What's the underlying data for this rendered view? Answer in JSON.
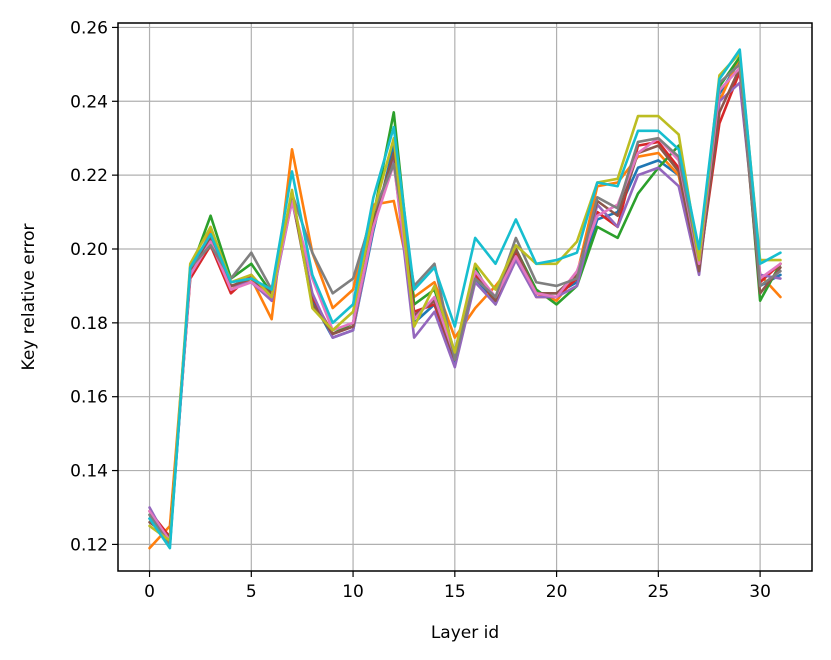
{
  "chart_data": {
    "type": "line",
    "xlabel": "Layer id",
    "ylabel": "Key relative error",
    "xlim": [
      -1.55,
      32.55
    ],
    "ylim": [
      0.1128,
      0.2612
    ],
    "xticks": [
      0,
      5,
      10,
      15,
      20,
      25,
      30
    ],
    "yticks": [
      0.12,
      0.14,
      0.16,
      0.18,
      0.2,
      0.22,
      0.24,
      0.26
    ],
    "xtick_labels": [
      "0",
      "5",
      "10",
      "15",
      "20",
      "25",
      "30"
    ],
    "ytick_labels": [
      "0.12",
      "0.14",
      "0.16",
      "0.18",
      "0.20",
      "0.22",
      "0.24",
      "0.26"
    ],
    "grid": true,
    "legend": "none",
    "x": [
      0,
      1,
      2,
      3,
      4,
      5,
      6,
      7,
      8,
      9,
      10,
      11,
      12,
      13,
      14,
      15,
      16,
      17,
      18,
      19,
      20,
      21,
      22,
      23,
      24,
      25,
      26,
      27,
      28,
      29,
      30,
      31
    ],
    "series": [
      {
        "color": "#1f77b4",
        "values": [
          0.127,
          0.121,
          0.193,
          0.203,
          0.19,
          0.191,
          0.188,
          0.215,
          0.186,
          0.176,
          0.178,
          0.205,
          0.228,
          0.18,
          0.185,
          0.169,
          0.192,
          0.186,
          0.198,
          0.188,
          0.188,
          0.191,
          0.208,
          0.21,
          0.222,
          0.224,
          0.22,
          0.194,
          0.242,
          0.251,
          0.19,
          0.193
        ]
      },
      {
        "color": "#ff7f0e",
        "values": [
          0.119,
          0.125,
          0.193,
          0.205,
          0.189,
          0.192,
          0.181,
          0.227,
          0.199,
          0.184,
          0.189,
          0.212,
          0.213,
          0.187,
          0.191,
          0.176,
          0.184,
          0.19,
          0.197,
          0.188,
          0.186,
          0.193,
          0.217,
          0.218,
          0.225,
          0.226,
          0.22,
          0.194,
          0.24,
          0.252,
          0.193,
          0.187
        ]
      },
      {
        "color": "#2ca02c",
        "values": [
          0.128,
          0.12,
          0.194,
          0.209,
          0.192,
          0.196,
          0.188,
          0.215,
          0.185,
          0.177,
          0.18,
          0.209,
          0.237,
          0.185,
          0.189,
          0.172,
          0.195,
          0.185,
          0.2,
          0.189,
          0.185,
          0.19,
          0.206,
          0.203,
          0.215,
          0.222,
          0.228,
          0.198,
          0.244,
          0.252,
          0.186,
          0.196
        ]
      },
      {
        "color": "#d62728",
        "values": [
          0.129,
          0.122,
          0.192,
          0.201,
          0.188,
          0.193,
          0.186,
          0.214,
          0.187,
          0.177,
          0.179,
          0.207,
          0.225,
          0.183,
          0.185,
          0.17,
          0.193,
          0.186,
          0.199,
          0.187,
          0.187,
          0.192,
          0.21,
          0.206,
          0.228,
          0.229,
          0.222,
          0.195,
          0.234,
          0.248,
          0.191,
          0.196
        ]
      },
      {
        "color": "#9467bd",
        "values": [
          0.13,
          0.12,
          0.193,
          0.202,
          0.19,
          0.191,
          0.186,
          0.213,
          0.188,
          0.176,
          0.178,
          0.206,
          0.224,
          0.176,
          0.183,
          0.168,
          0.191,
          0.185,
          0.197,
          0.187,
          0.187,
          0.19,
          0.212,
          0.206,
          0.22,
          0.222,
          0.217,
          0.193,
          0.24,
          0.245,
          0.193,
          0.192
        ]
      },
      {
        "color": "#8c564b",
        "values": [
          0.126,
          0.122,
          0.194,
          0.203,
          0.19,
          0.192,
          0.188,
          0.214,
          0.185,
          0.177,
          0.179,
          0.207,
          0.226,
          0.182,
          0.186,
          0.17,
          0.194,
          0.186,
          0.2,
          0.188,
          0.188,
          0.193,
          0.213,
          0.209,
          0.226,
          0.228,
          0.221,
          0.194,
          0.237,
          0.249,
          0.188,
          0.195
        ]
      },
      {
        "color": "#e377c2",
        "values": [
          0.129,
          0.121,
          0.193,
          0.202,
          0.189,
          0.191,
          0.187,
          0.213,
          0.192,
          0.178,
          0.18,
          0.206,
          0.223,
          0.181,
          0.187,
          0.171,
          0.194,
          0.187,
          0.198,
          0.188,
          0.187,
          0.194,
          0.209,
          0.212,
          0.226,
          0.23,
          0.224,
          0.196,
          0.243,
          0.249,
          0.192,
          0.196
        ]
      },
      {
        "color": "#7f7f7f",
        "values": [
          0.128,
          0.12,
          0.195,
          0.201,
          0.192,
          0.199,
          0.189,
          0.215,
          0.199,
          0.188,
          0.192,
          0.21,
          0.223,
          0.19,
          0.196,
          0.17,
          0.192,
          0.187,
          0.203,
          0.191,
          0.19,
          0.192,
          0.214,
          0.211,
          0.229,
          0.23,
          0.225,
          0.197,
          0.245,
          0.25,
          0.19,
          0.194
        ]
      },
      {
        "color": "#bcbd22",
        "values": [
          0.125,
          0.121,
          0.196,
          0.206,
          0.191,
          0.193,
          0.187,
          0.216,
          0.184,
          0.178,
          0.183,
          0.21,
          0.23,
          0.179,
          0.19,
          0.172,
          0.196,
          0.189,
          0.201,
          0.196,
          0.196,
          0.202,
          0.218,
          0.219,
          0.236,
          0.236,
          0.231,
          0.197,
          0.247,
          0.253,
          0.197,
          0.197
        ]
      },
      {
        "color": "#17becf",
        "values": [
          0.127,
          0.119,
          0.195,
          0.204,
          0.191,
          0.192,
          0.189,
          0.221,
          0.193,
          0.18,
          0.185,
          0.214,
          0.233,
          0.189,
          0.195,
          0.179,
          0.203,
          0.196,
          0.208,
          0.196,
          0.197,
          0.199,
          0.218,
          0.217,
          0.232,
          0.232,
          0.227,
          0.2,
          0.246,
          0.254,
          0.196,
          0.199
        ]
      }
    ]
  }
}
